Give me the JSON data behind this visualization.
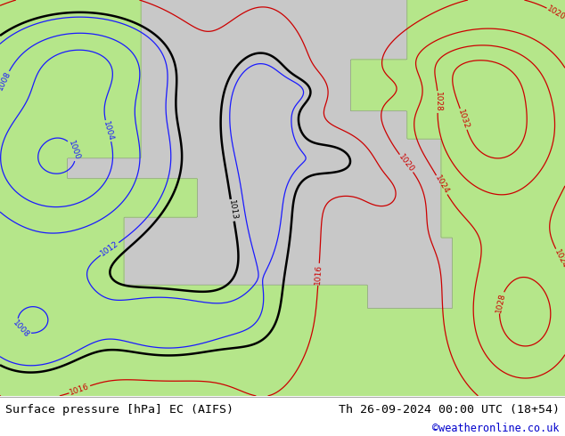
{
  "title_left": "Surface pressure [hPa] EC (AIFS)",
  "title_right": "Th 26-09-2024 00:00 UTC (18+54)",
  "credit": "©weatheronline.co.uk",
  "bg_land_color": "#b5e68a",
  "bg_sea_color": "#c8c8c8",
  "text_color_left": "#000000",
  "text_color_right": "#000000",
  "credit_color": "#0000cc",
  "figsize": [
    6.34,
    4.9
  ],
  "dpi": 100
}
